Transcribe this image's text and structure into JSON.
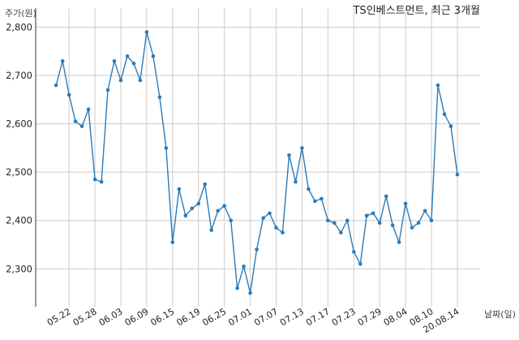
{
  "chart_data": {
    "type": "line",
    "title": "TS인베스트먼트, 최근 3개월",
    "ylabel": "주가(원)",
    "xlabel": "날짜(일)",
    "ylim": [
      2225,
      2822
    ],
    "yticks": [
      2300,
      2400,
      2500,
      2600,
      2700,
      2800
    ],
    "ytick_labels": [
      "2,300",
      "2,400",
      "2,500",
      "2,600",
      "2,700",
      "2,800"
    ],
    "xticks": [
      "05.22",
      "05.28",
      "06.03",
      "06.09",
      "06.15",
      "06.19",
      "06.25",
      "07.01",
      "07.07",
      "07.13",
      "07.17",
      "07.23",
      "07.29",
      "08.04",
      "08.10",
      "20.08.14"
    ],
    "grid": true,
    "color": "#2b7bb9",
    "series": [
      {
        "x": [
          "05.20",
          "05.21",
          "05.22",
          "05.25",
          "05.26",
          "05.27",
          "05.28",
          "05.29",
          "06.01",
          "06.02",
          "06.03",
          "06.04",
          "06.05",
          "06.08",
          "06.09",
          "06.10",
          "06.11",
          "06.12",
          "06.15",
          "06.16",
          "06.17",
          "06.18",
          "06.19",
          "06.22",
          "06.23",
          "06.24",
          "06.25",
          "06.26",
          "06.29",
          "06.30",
          "07.01",
          "07.02",
          "07.03",
          "07.06",
          "07.07",
          "07.08",
          "07.09",
          "07.10",
          "07.13",
          "07.14",
          "07.15",
          "07.16",
          "07.17",
          "07.20",
          "07.21",
          "07.22",
          "07.23",
          "07.24",
          "07.27",
          "07.28",
          "07.29",
          "07.30",
          "07.31",
          "08.03",
          "08.04",
          "08.05",
          "08.06",
          "08.07",
          "08.10",
          "08.11",
          "08.12",
          "08.13",
          "08.14"
        ],
        "values": [
          2680,
          2730,
          2660,
          2605,
          2595,
          2630,
          2485,
          2480,
          2670,
          2730,
          2690,
          2740,
          2725,
          2690,
          2790,
          2740,
          2655,
          2550,
          2355,
          2465,
          2410,
          2425,
          2435,
          2475,
          2380,
          2420,
          2430,
          2400,
          2260,
          2305,
          2250,
          2340,
          2405,
          2415,
          2385,
          2375,
          2535,
          2480,
          2550,
          2465,
          2440,
          2445,
          2400,
          2395,
          2375,
          2400,
          2335,
          2310,
          2410,
          2415,
          2395,
          2450,
          2390,
          2355,
          2435,
          2385,
          2395,
          2420,
          2400,
          2680,
          2620,
          2595,
          2495
        ]
      }
    ]
  }
}
